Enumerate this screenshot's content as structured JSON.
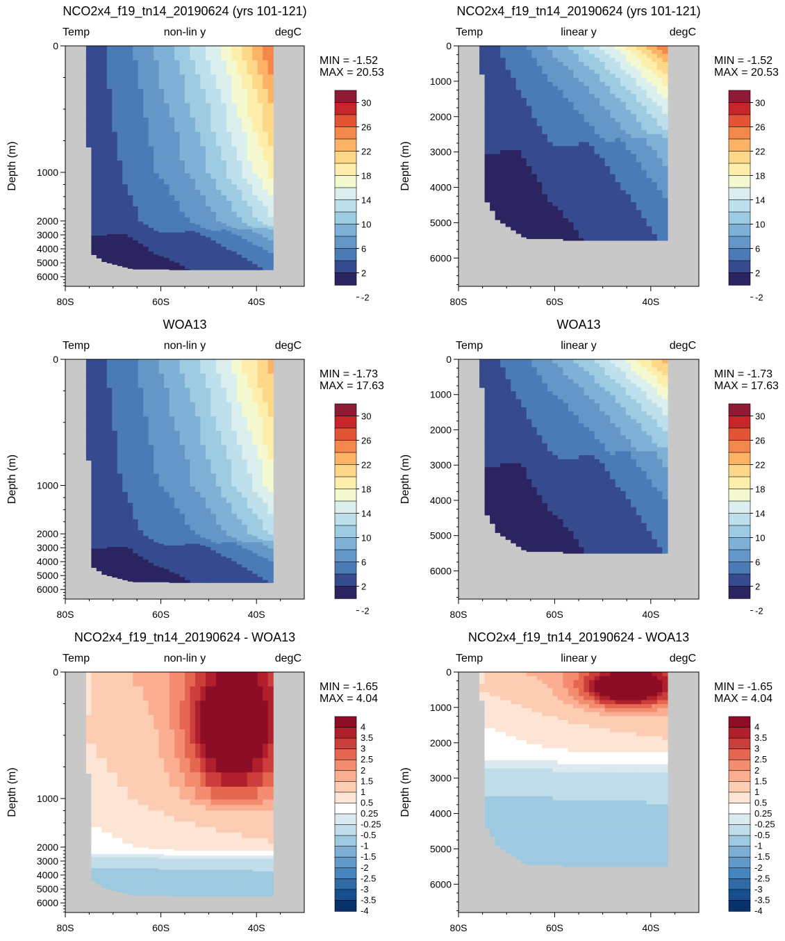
{
  "colors": {
    "land": "#c8c8c8",
    "temp_scale": [
      "#2b2461",
      "#364b8e",
      "#4a7bb7",
      "#6497c7",
      "#7fb0d6",
      "#9ccbe2",
      "#bde0ec",
      "#dcefef",
      "#f4f9d0",
      "#fdeeab",
      "#fed889",
      "#fdb366",
      "#f4874c",
      "#e15535",
      "#c5262c",
      "#8e1a35"
    ],
    "diff_scale": [
      "#08306b",
      "#174e8d",
      "#2d6aa6",
      "#4785bf",
      "#6399c8",
      "#7eaed4",
      "#9ecae1",
      "#c1ddea",
      "#dbe9f1",
      "#ffffff",
      "#fde5d6",
      "#fcccb3",
      "#fbae91",
      "#f48d70",
      "#e5674f",
      "#cc3e3b",
      "#b01f2c",
      "#8c0d25"
    ]
  },
  "panels": [
    {
      "id": "model-nonlin",
      "title": "NCO2x4_f19_tn14_20190624 (yrs 101-121)",
      "left_label": "Temp",
      "center_label": "non-lin y",
      "right_label": "degC",
      "min_text": "MIN = -1.52",
      "max_text": "MAX = 20.53",
      "kind": "model",
      "yscale": "nonlin"
    },
    {
      "id": "model-linear",
      "title": "NCO2x4_f19_tn14_20190624 (yrs 101-121)",
      "left_label": "Temp",
      "center_label": "linear y",
      "right_label": "degC",
      "min_text": "MIN = -1.52",
      "max_text": "MAX = 20.53",
      "kind": "model",
      "yscale": "linear"
    },
    {
      "id": "obs-nonlin",
      "title": "WOA13",
      "left_label": "Temp",
      "center_label": "non-lin y",
      "right_label": "degC",
      "min_text": "MIN = -1.73",
      "max_text": "MAX = 17.63",
      "kind": "obs",
      "yscale": "nonlin"
    },
    {
      "id": "obs-linear",
      "title": "WOA13",
      "left_label": "Temp",
      "center_label": "linear y",
      "right_label": "degC",
      "min_text": "MIN = -1.73",
      "max_text": "MAX = 17.63",
      "kind": "obs",
      "yscale": "linear"
    },
    {
      "id": "diff-nonlin",
      "title": "NCO2x4_f19_tn14_20190624 - WOA13",
      "left_label": "Temp",
      "center_label": "non-lin y",
      "right_label": "degC",
      "min_text": "MIN = -1.65",
      "max_text": "MAX =  4.04",
      "kind": "diff",
      "yscale": "nonlin"
    },
    {
      "id": "diff-linear",
      "title": "NCO2x4_f19_tn14_20190624 - WOA13",
      "left_label": "Temp",
      "center_label": "linear y",
      "right_label": "degC",
      "min_text": "MIN = -1.65",
      "max_text": "MAX =  4.04",
      "kind": "diff",
      "yscale": "linear"
    }
  ],
  "chart_data": {
    "type": "heatmap",
    "xlabel": "",
    "ylabel": "Depth (m)",
    "x_ticks": [
      "80S",
      "60S",
      "40S"
    ],
    "x_range": [
      -80,
      -30
    ],
    "y_range_m": [
      0,
      6800
    ],
    "y_ticks_linear": [
      "0",
      "1000",
      "2000",
      "3000",
      "4000",
      "5000",
      "6000"
    ],
    "y_ticks_nonlin": [
      "0",
      "1000",
      "2000",
      "3000",
      "4000",
      "5000",
      "6000"
    ],
    "temp_colorbar_labels": [
      "30",
      "26",
      "22",
      "18",
      "14",
      "10",
      "6",
      "2",
      "-2"
    ],
    "diff_colorbar_labels": [
      "4",
      "3.5",
      "3",
      "2.5",
      "2",
      "1.5",
      "1",
      "0.5",
      "0.25",
      "-0.25",
      "-0.5",
      "-1",
      "-1.5",
      "-2",
      "-2.5",
      "-3",
      "-3.5",
      "-4"
    ]
  }
}
